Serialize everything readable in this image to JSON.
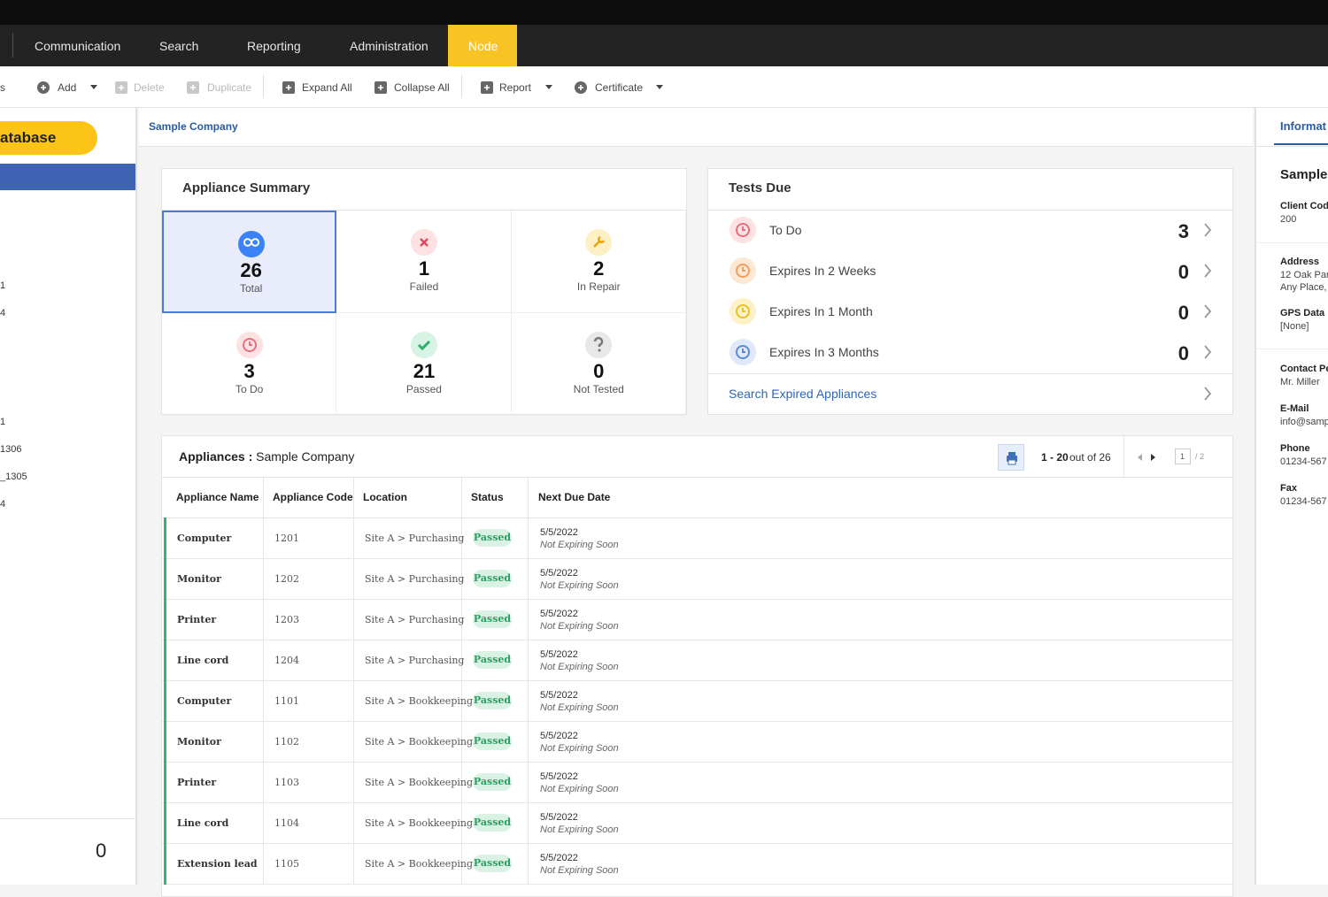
{
  "nav": {
    "items": [
      "Communication",
      "Search",
      "Reporting",
      "Administration",
      "Node"
    ]
  },
  "toolbar": {
    "items": [
      "s",
      "Add",
      "Delete",
      "Duplicate",
      "Expand All",
      "Collapse All",
      "Report",
      "Certificate"
    ]
  },
  "sidebar": {
    "button": "atabase",
    "tree": [
      "1",
      "4",
      "1",
      "1306",
      "_1305",
      "4"
    ],
    "footer_count": 0
  },
  "breadcrumb": "Sample Company",
  "summary": {
    "title": "Appliance Summary",
    "tiles": [
      {
        "value": 26,
        "label": "Total"
      },
      {
        "value": 1,
        "label": "Failed"
      },
      {
        "value": 2,
        "label": "In Repair"
      },
      {
        "value": 3,
        "label": "To Do"
      },
      {
        "value": 21,
        "label": "Passed"
      },
      {
        "value": 0,
        "label": "Not Tested"
      }
    ]
  },
  "tests_due": {
    "title": "Tests Due",
    "rows": [
      {
        "label": "To Do",
        "value": 3
      },
      {
        "label": "Expires In 2 Weeks",
        "value": 0
      },
      {
        "label": "Expires In 1 Month",
        "value": 0
      },
      {
        "label": "Expires In 3 Months",
        "value": 0
      }
    ],
    "link": "Search Expired Appliances"
  },
  "appliances": {
    "title_label": "Appliances :",
    "title_company": "Sample Company",
    "range": "1 - 20",
    "total_text": "out of 26",
    "page": "1",
    "pages": "/ 2",
    "columns": [
      "Appliance Name",
      "Appliance Code",
      "Location",
      "Status",
      "Next Due Date"
    ],
    "rows": [
      [
        "Computer",
        "1201",
        "Site A > Purchasing",
        "Passed",
        "5/5/2022",
        "Not Expiring Soon"
      ],
      [
        "Monitor",
        "1202",
        "Site A > Purchasing",
        "Passed",
        "5/5/2022",
        "Not Expiring Soon"
      ],
      [
        "Printer",
        "1203",
        "Site A > Purchasing",
        "Passed",
        "5/5/2022",
        "Not Expiring Soon"
      ],
      [
        "Line cord",
        "1204",
        "Site A > Purchasing",
        "Passed",
        "5/5/2022",
        "Not Expiring Soon"
      ],
      [
        "Computer",
        "1101",
        "Site A > Bookkeeping",
        "Passed",
        "5/5/2022",
        "Not Expiring Soon"
      ],
      [
        "Monitor",
        "1102",
        "Site A > Bookkeeping",
        "Passed",
        "5/5/2022",
        "Not Expiring Soon"
      ],
      [
        "Printer",
        "1103",
        "Site A > Bookkeeping",
        "Passed",
        "5/5/2022",
        "Not Expiring Soon"
      ],
      [
        "Line cord",
        "1104",
        "Site A > Bookkeeping",
        "Passed",
        "5/5/2022",
        "Not Expiring Soon"
      ],
      [
        "Extension lead",
        "1105",
        "Site A > Bookkeeping",
        "Passed",
        "5/5/2022",
        "Not Expiring Soon"
      ]
    ]
  },
  "info_panel": {
    "tab": "Informat",
    "name": "Sample",
    "fields": [
      {
        "label": "Client Cod",
        "lines": [
          "200"
        ]
      },
      {
        "label": "Address",
        "lines": [
          "12 Oak Par",
          "Any Place,"
        ]
      },
      {
        "label": "GPS Data",
        "lines": [
          "[None]"
        ]
      },
      {
        "label": "Contact Pe",
        "lines": [
          "Mr. Miller"
        ]
      },
      {
        "label": "E-Mail",
        "lines": [
          "info@samp"
        ]
      },
      {
        "label": "Phone",
        "lines": [
          "01234-567"
        ]
      },
      {
        "label": "Fax",
        "lines": [
          "01234-567"
        ]
      }
    ]
  }
}
